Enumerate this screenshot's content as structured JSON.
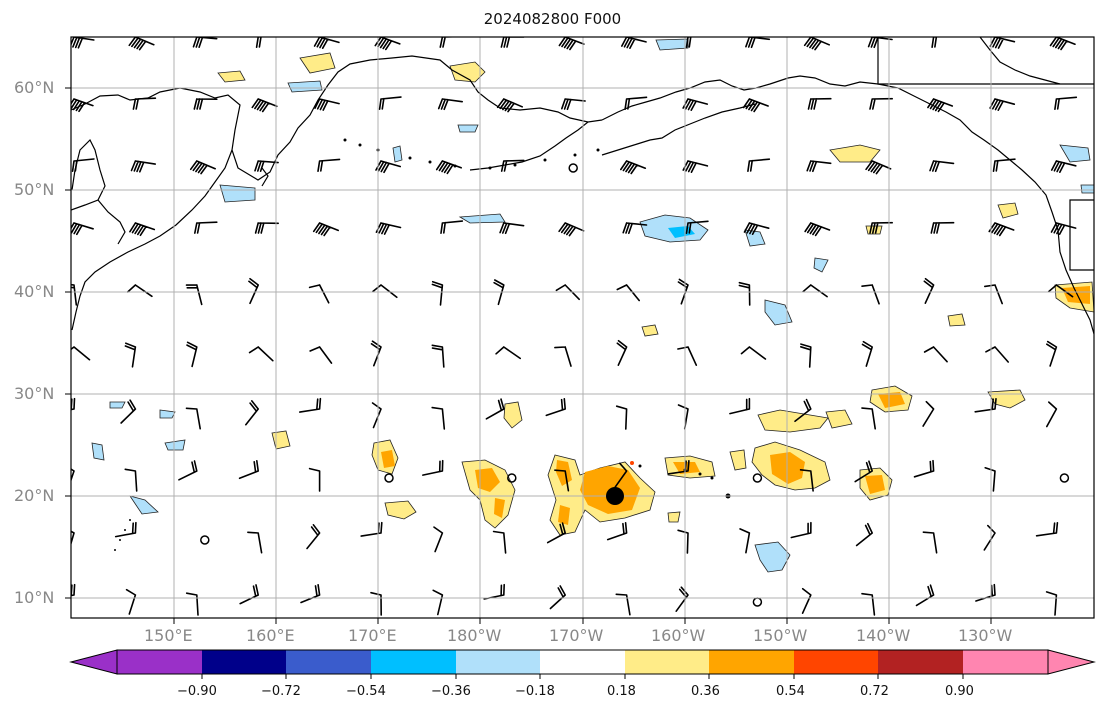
{
  "title": "2024082800 F000",
  "lat_labels": [
    "60°N",
    "50°N",
    "40°N",
    "30°N",
    "20°N",
    "10°N"
  ],
  "lon_labels": [
    "150°E",
    "160°E",
    "170°E",
    "180°W",
    "170°W",
    "160°W",
    "150°W",
    "140°W",
    "130°W"
  ],
  "colorbar": {
    "ticks": [
      "−0.90",
      "−0.72",
      "−0.54",
      "−0.36",
      "−0.18",
      "0.18",
      "0.36",
      "0.54",
      "0.72",
      "0.90"
    ],
    "colors": [
      "#9a30c8",
      "#00008a",
      "#3a5ccc",
      "#00bfff",
      "#b0e0fa",
      "#ffffff",
      "#ffec88",
      "#ffa500",
      "#ff4500",
      "#b22222",
      "#ff85b0"
    ]
  },
  "legend_colors": {
    "land_outline": "#000000",
    "grid": "#b0b0b0",
    "barb": "#000000",
    "low_center": "#000000"
  }
}
